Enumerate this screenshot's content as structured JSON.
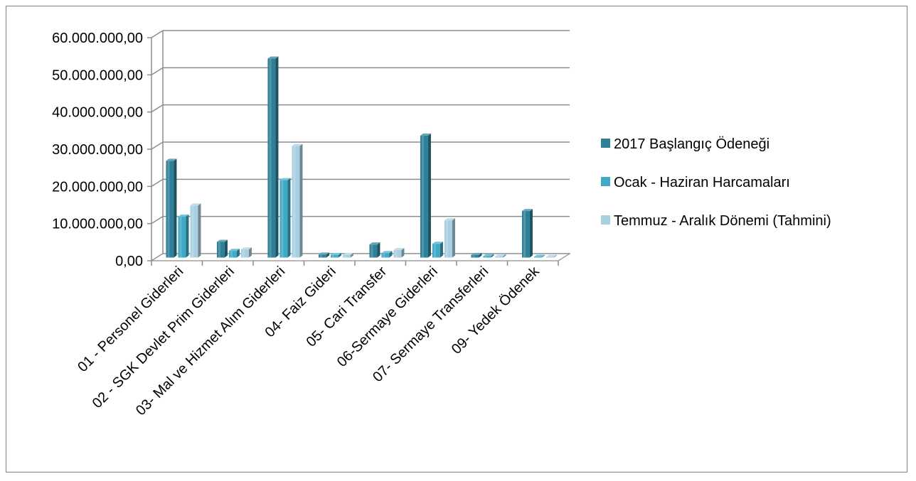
{
  "chart_data": {
    "type": "bar",
    "title": "",
    "xlabel": "",
    "ylabel": "",
    "ylim": [
      0,
      60000000
    ],
    "yticks": [
      "0,00",
      "10.000.000,00",
      "20.000.000,00",
      "30.000.000,00",
      "40.000.000,00",
      "50.000.000,00",
      "60.000.000,00"
    ],
    "categories": [
      "01 - Personel Giderleri",
      "02 - SGK Devlet Prim Giderleri",
      "03- Mal ve Hizmet Alım Giderleri",
      "04- Faiz Gideri",
      "05- Cari Transfer",
      "06-Sermaye Giderleri",
      "07- Sermaye Transferleri",
      "09- Yedek Ödenek"
    ],
    "series": [
      {
        "name": "2017 Başlangıç Ödeneği",
        "color": "#2e7f97",
        "values": [
          26000000,
          4200000,
          53500000,
          800000,
          3500000,
          32800000,
          700000,
          12500000
        ]
      },
      {
        "name": "Ocak - Haziran Harcamaları",
        "color": "#3fa9c6",
        "values": [
          11000000,
          1800000,
          20800000,
          700000,
          1200000,
          3700000,
          400000,
          50000
        ]
      },
      {
        "name": "Temmuz - Aralık Dönemi (Tahmini)",
        "color": "#a9d0e0",
        "values": [
          14000000,
          2200000,
          30000000,
          700000,
          2000000,
          10000000,
          400000,
          50000
        ]
      }
    ],
    "grid": true,
    "legend_position": "right"
  }
}
